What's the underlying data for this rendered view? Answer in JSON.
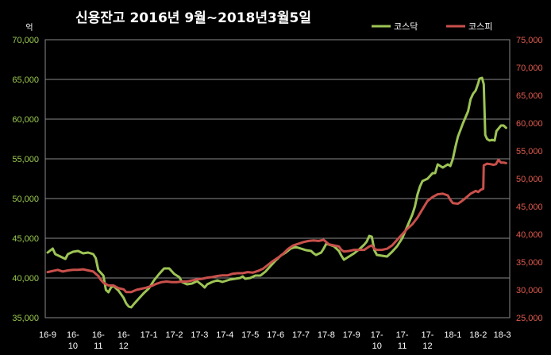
{
  "chart_data": {
    "type": "line",
    "title": "신용잔고  2016년 9월~2018년3월5일",
    "left_unit": "억",
    "colors": {
      "kosdaq": "#9dc455",
      "kospi": "#c9504b",
      "grid": "#8a8a8a",
      "background": "#000000"
    },
    "grid": true,
    "legend_position": "top-right",
    "y_left": {
      "range": [
        35000,
        70000
      ],
      "ticks": [
        "35,000",
        "40,000",
        "45,000",
        "50,000",
        "55,000",
        "60,000",
        "65,000",
        "70,000"
      ]
    },
    "y_right": {
      "range": [
        25000,
        75000
      ],
      "ticks": [
        "25,000",
        "30,000",
        "35,000",
        "40,000",
        "45,000",
        "50,000",
        "55,000",
        "60,000",
        "65,000",
        "70,000",
        "75,000"
      ]
    },
    "x_domain": [
      0,
      18.15
    ],
    "x_ticks": [
      {
        "x": 0.0,
        "lines": [
          "16-9"
        ]
      },
      {
        "x": 1.0,
        "lines": [
          "16-",
          "10"
        ]
      },
      {
        "x": 2.0,
        "lines": [
          "16-",
          "11"
        ]
      },
      {
        "x": 3.0,
        "lines": [
          "16-",
          "12"
        ]
      },
      {
        "x": 4.0,
        "lines": [
          "17-1"
        ]
      },
      {
        "x": 5.0,
        "lines": [
          "17-2"
        ]
      },
      {
        "x": 6.0,
        "lines": [
          "17-3"
        ]
      },
      {
        "x": 7.0,
        "lines": [
          "17-4"
        ]
      },
      {
        "x": 8.0,
        "lines": [
          "17-5"
        ]
      },
      {
        "x": 9.0,
        "lines": [
          "17-6"
        ]
      },
      {
        "x": 10.0,
        "lines": [
          "17-7"
        ]
      },
      {
        "x": 11.0,
        "lines": [
          "17-8"
        ]
      },
      {
        "x": 12.0,
        "lines": [
          "17-9"
        ]
      },
      {
        "x": 13.0,
        "lines": [
          "17-",
          "10"
        ]
      },
      {
        "x": 14.0,
        "lines": [
          "17-",
          "11"
        ]
      },
      {
        "x": 15.0,
        "lines": [
          "17-",
          "12"
        ]
      },
      {
        "x": 16.0,
        "lines": [
          "18-1"
        ]
      },
      {
        "x": 17.0,
        "lines": [
          "18-2"
        ]
      },
      {
        "x": 17.95,
        "lines": [
          "18-3"
        ]
      }
    ],
    "series": [
      {
        "name": "코스닥",
        "axis": "left",
        "color": "#9dc455",
        "points": [
          [
            0.0,
            43200
          ],
          [
            0.2,
            43700
          ],
          [
            0.3,
            43000
          ],
          [
            0.5,
            42700
          ],
          [
            0.7,
            42400
          ],
          [
            0.8,
            43000
          ],
          [
            1.0,
            43300
          ],
          [
            1.2,
            43400
          ],
          [
            1.4,
            43100
          ],
          [
            1.6,
            43200
          ],
          [
            1.8,
            43000
          ],
          [
            1.9,
            42500
          ],
          [
            2.0,
            41000
          ],
          [
            2.2,
            40300
          ],
          [
            2.3,
            38500
          ],
          [
            2.4,
            38200
          ],
          [
            2.5,
            38800
          ],
          [
            2.6,
            39000
          ],
          [
            2.8,
            38400
          ],
          [
            3.0,
            37500
          ],
          [
            3.1,
            36800
          ],
          [
            3.2,
            36400
          ],
          [
            3.3,
            36300
          ],
          [
            3.4,
            36700
          ],
          [
            3.6,
            37400
          ],
          [
            3.8,
            38100
          ],
          [
            4.0,
            38700
          ],
          [
            4.2,
            39700
          ],
          [
            4.4,
            40500
          ],
          [
            4.6,
            41200
          ],
          [
            4.8,
            41200
          ],
          [
            5.0,
            40500
          ],
          [
            5.2,
            40100
          ],
          [
            5.3,
            39500
          ],
          [
            5.5,
            39200
          ],
          [
            5.7,
            39300
          ],
          [
            5.9,
            39600
          ],
          [
            6.1,
            39100
          ],
          [
            6.2,
            38800
          ],
          [
            6.3,
            39200
          ],
          [
            6.5,
            39500
          ],
          [
            6.7,
            39700
          ],
          [
            6.9,
            39500
          ],
          [
            7.0,
            39600
          ],
          [
            7.2,
            39800
          ],
          [
            7.4,
            39900
          ],
          [
            7.6,
            40000
          ],
          [
            7.7,
            40200
          ],
          [
            7.8,
            39900
          ],
          [
            8.0,
            40000
          ],
          [
            8.2,
            40300
          ],
          [
            8.4,
            40300
          ],
          [
            8.6,
            40800
          ],
          [
            8.8,
            41500
          ],
          [
            9.0,
            42200
          ],
          [
            9.2,
            42800
          ],
          [
            9.4,
            43200
          ],
          [
            9.6,
            43700
          ],
          [
            9.8,
            43900
          ],
          [
            10.0,
            43700
          ],
          [
            10.2,
            43500
          ],
          [
            10.4,
            43400
          ],
          [
            10.5,
            43100
          ],
          [
            10.6,
            42900
          ],
          [
            10.8,
            43200
          ],
          [
            10.9,
            43700
          ],
          [
            11.0,
            44300
          ],
          [
            11.1,
            44200
          ],
          [
            11.3,
            44000
          ],
          [
            11.5,
            43400
          ],
          [
            11.6,
            42800
          ],
          [
            11.7,
            42300
          ],
          [
            11.9,
            42700
          ],
          [
            12.1,
            43100
          ],
          [
            12.3,
            43600
          ],
          [
            12.5,
            44200
          ],
          [
            12.6,
            44600
          ],
          [
            12.7,
            45300
          ],
          [
            12.8,
            45200
          ],
          [
            12.9,
            43500
          ],
          [
            13.0,
            42900
          ],
          [
            13.2,
            42800
          ],
          [
            13.4,
            42700
          ],
          [
            13.6,
            43300
          ],
          [
            13.8,
            44000
          ],
          [
            14.0,
            45000
          ],
          [
            14.2,
            46500
          ],
          [
            14.4,
            48000
          ],
          [
            14.5,
            49000
          ],
          [
            14.6,
            50500
          ],
          [
            14.7,
            51500
          ],
          [
            14.8,
            52200
          ],
          [
            15.0,
            52500
          ],
          [
            15.2,
            53200
          ],
          [
            15.3,
            53200
          ],
          [
            15.4,
            54300
          ],
          [
            15.6,
            53900
          ],
          [
            15.8,
            54300
          ],
          [
            15.9,
            54100
          ],
          [
            16.0,
            55000
          ],
          [
            16.1,
            56500
          ],
          [
            16.2,
            57800
          ],
          [
            16.4,
            59500
          ],
          [
            16.6,
            61000
          ],
          [
            16.7,
            62500
          ],
          [
            16.8,
            63200
          ],
          [
            16.9,
            63600
          ],
          [
            17.0,
            64500
          ],
          [
            17.05,
            65100
          ],
          [
            17.15,
            65200
          ],
          [
            17.22,
            64400
          ],
          [
            17.28,
            58000
          ],
          [
            17.35,
            57500
          ],
          [
            17.45,
            57300
          ],
          [
            17.55,
            57400
          ],
          [
            17.65,
            57300
          ],
          [
            17.72,
            58500
          ],
          [
            17.8,
            58800
          ],
          [
            17.9,
            59200
          ],
          [
            18.0,
            59200
          ],
          [
            18.1,
            58900
          ]
        ]
      },
      {
        "name": "코스피",
        "axis": "right",
        "color": "#c9504b",
        "points": [
          [
            0.0,
            33200
          ],
          [
            0.2,
            33400
          ],
          [
            0.4,
            33600
          ],
          [
            0.6,
            33300
          ],
          [
            0.8,
            33500
          ],
          [
            1.0,
            33600
          ],
          [
            1.2,
            33600
          ],
          [
            1.4,
            33700
          ],
          [
            1.6,
            33500
          ],
          [
            1.8,
            33300
          ],
          [
            1.9,
            32900
          ],
          [
            2.0,
            32500
          ],
          [
            2.1,
            31800
          ],
          [
            2.2,
            31300
          ],
          [
            2.4,
            30800
          ],
          [
            2.6,
            30800
          ],
          [
            2.8,
            30300
          ],
          [
            3.0,
            30100
          ],
          [
            3.1,
            29600
          ],
          [
            3.3,
            29600
          ],
          [
            3.5,
            30000
          ],
          [
            3.7,
            30200
          ],
          [
            3.9,
            30400
          ],
          [
            4.1,
            30700
          ],
          [
            4.3,
            31100
          ],
          [
            4.5,
            31400
          ],
          [
            4.7,
            31500
          ],
          [
            4.9,
            31400
          ],
          [
            5.1,
            31400
          ],
          [
            5.3,
            31500
          ],
          [
            5.5,
            31500
          ],
          [
            5.7,
            31700
          ],
          [
            5.9,
            31900
          ],
          [
            6.1,
            32000
          ],
          [
            6.3,
            32200
          ],
          [
            6.5,
            32300
          ],
          [
            6.7,
            32500
          ],
          [
            6.9,
            32600
          ],
          [
            7.1,
            32600
          ],
          [
            7.3,
            32900
          ],
          [
            7.5,
            33000
          ],
          [
            7.7,
            33000
          ],
          [
            7.9,
            33200
          ],
          [
            8.1,
            33100
          ],
          [
            8.3,
            33400
          ],
          [
            8.5,
            33800
          ],
          [
            8.7,
            34500
          ],
          [
            8.9,
            35200
          ],
          [
            9.1,
            35800
          ],
          [
            9.3,
            36500
          ],
          [
            9.5,
            37400
          ],
          [
            9.7,
            38000
          ],
          [
            9.9,
            38300
          ],
          [
            10.1,
            38600
          ],
          [
            10.3,
            38800
          ],
          [
            10.5,
            38900
          ],
          [
            10.7,
            38800
          ],
          [
            10.9,
            39000
          ],
          [
            11.0,
            38600
          ],
          [
            11.1,
            38200
          ],
          [
            11.3,
            38000
          ],
          [
            11.5,
            37800
          ],
          [
            11.6,
            37200
          ],
          [
            11.7,
            36900
          ],
          [
            11.9,
            37000
          ],
          [
            12.1,
            37200
          ],
          [
            12.3,
            37200
          ],
          [
            12.5,
            37200
          ],
          [
            12.7,
            37800
          ],
          [
            12.8,
            38000
          ],
          [
            12.9,
            37400
          ],
          [
            13.0,
            37200
          ],
          [
            13.2,
            37200
          ],
          [
            13.4,
            37400
          ],
          [
            13.6,
            38000
          ],
          [
            13.8,
            39000
          ],
          [
            14.0,
            40000
          ],
          [
            14.2,
            41000
          ],
          [
            14.4,
            41800
          ],
          [
            14.6,
            43000
          ],
          [
            14.8,
            44500
          ],
          [
            15.0,
            46000
          ],
          [
            15.2,
            46700
          ],
          [
            15.4,
            47200
          ],
          [
            15.6,
            47300
          ],
          [
            15.8,
            47000
          ],
          [
            15.9,
            46200
          ],
          [
            16.0,
            45600
          ],
          [
            16.2,
            45500
          ],
          [
            16.3,
            45800
          ],
          [
            16.5,
            46500
          ],
          [
            16.7,
            47300
          ],
          [
            16.9,
            47800
          ],
          [
            17.0,
            47600
          ],
          [
            17.1,
            48000
          ],
          [
            17.2,
            48200
          ],
          [
            17.22,
            52400
          ],
          [
            17.35,
            52700
          ],
          [
            17.5,
            52600
          ],
          [
            17.6,
            52500
          ],
          [
            17.7,
            52600
          ],
          [
            17.8,
            53400
          ],
          [
            17.9,
            52900
          ],
          [
            18.0,
            52900
          ],
          [
            18.1,
            52800
          ]
        ]
      }
    ]
  }
}
